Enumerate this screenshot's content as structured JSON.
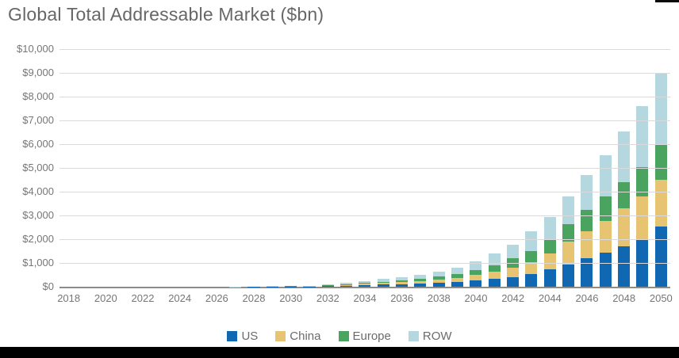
{
  "chart_data": {
    "type": "bar",
    "stacked": true,
    "title": "Global Total Addressable Market ($bn)",
    "x": [
      2018,
      2019,
      2020,
      2021,
      2022,
      2023,
      2024,
      2025,
      2026,
      2027,
      2028,
      2029,
      2030,
      2031,
      2032,
      2033,
      2034,
      2035,
      2036,
      2037,
      2038,
      2039,
      2040,
      2041,
      2042,
      2043,
      2044,
      2045,
      2046,
      2047,
      2048,
      2049,
      2050
    ],
    "x_tick_labels": [
      "2018",
      "2020",
      "2022",
      "2024",
      "2026",
      "2028",
      "2030",
      "2032",
      "2034",
      "2036",
      "2038",
      "2040",
      "2042",
      "2044",
      "2046",
      "2048",
      "2050"
    ],
    "series": [
      {
        "name": "US",
        "color": "#1068b3",
        "values": [
          0,
          0,
          0,
          0,
          0,
          0,
          1,
          1,
          1,
          2,
          3,
          5,
          8,
          13,
          27,
          44,
          66,
          84,
          108,
          134,
          170,
          210,
          270,
          350,
          400,
          540,
          730,
          950,
          1200,
          1450,
          1700,
          2000,
          2550
        ]
      },
      {
        "name": "China",
        "color": "#e6c472",
        "values": [
          0,
          0,
          0,
          0,
          0,
          0,
          0,
          1,
          1,
          2,
          3,
          4,
          7,
          11,
          22,
          36,
          54,
          70,
          90,
          112,
          140,
          170,
          230,
          300,
          400,
          490,
          670,
          950,
          1150,
          1330,
          1600,
          1800,
          1950
        ]
      },
      {
        "name": "Europe",
        "color": "#4aa35e",
        "values": [
          0,
          0,
          0,
          0,
          0,
          0,
          0,
          0,
          1,
          1,
          2,
          3,
          5,
          8,
          17,
          28,
          42,
          56,
          72,
          88,
          110,
          140,
          190,
          240,
          400,
          460,
          600,
          730,
          900,
          1020,
          1100,
          1250,
          1500
        ]
      },
      {
        "name": "ROW",
        "color": "#b5d7df",
        "values": [
          0,
          0,
          0,
          0,
          0,
          0,
          1,
          1,
          2,
          3,
          4,
          8,
          12,
          18,
          34,
          57,
          88,
          110,
          140,
          176,
          230,
          280,
          385,
          510,
          580,
          860,
          950,
          1170,
          1450,
          1750,
          2150,
          2550,
          3000
        ]
      }
    ],
    "ylim": [
      0,
      10000
    ],
    "y_ticks": [
      "$0",
      "$1,000",
      "$2,000",
      "$3,000",
      "$4,000",
      "$5,000",
      "$6,000",
      "$7,000",
      "$8,000",
      "$9,000",
      "$10,000"
    ],
    "grid": "horizontal",
    "legend_position": "bottom",
    "colors": {
      "title_text": "#676767",
      "tick_text": "#767676",
      "gridline": "#dadada",
      "axis_line": "#8c8c8c",
      "bottom_strip": "#000000"
    }
  }
}
